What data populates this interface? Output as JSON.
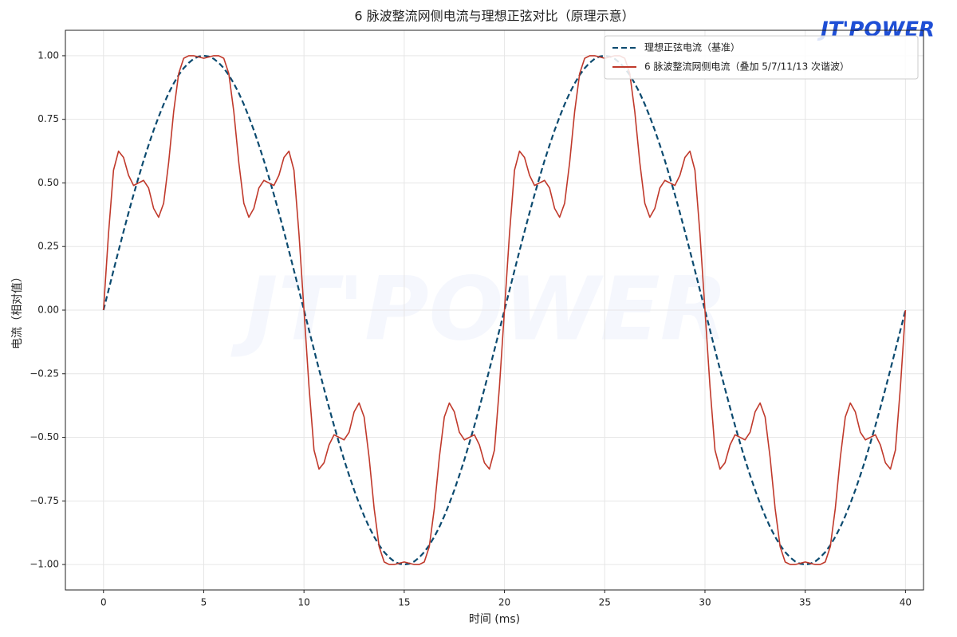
{
  "chart_data": {
    "type": "line",
    "title": "6 脉波整流网侧电流与理想正弦对比（原理示意）",
    "xlabel": "时间 (ms)",
    "ylabel": "电流（相对值）",
    "logo": "JT'POWER",
    "xlim": [
      -1.9,
      40.9
    ],
    "ylim": [
      -1.1,
      1.1
    ],
    "xticks": [
      0,
      5,
      10,
      15,
      20,
      25,
      30,
      35,
      40
    ],
    "yticks": [
      {
        "value": -1,
        "label": "−1.00"
      },
      {
        "value": -0.75,
        "label": "−0.75"
      },
      {
        "value": -0.5,
        "label": "−0.50"
      },
      {
        "value": -0.25,
        "label": "−0.25"
      },
      {
        "value": 0,
        "label": "0.00"
      },
      {
        "value": 0.25,
        "label": "0.25"
      },
      {
        "value": 0.5,
        "label": "0.50"
      },
      {
        "value": 0.75,
        "label": "0.75"
      },
      {
        "value": 1,
        "label": "1.00"
      }
    ],
    "grid": true,
    "legend": "upper right",
    "x": [
      0,
      0.25,
      0.5,
      0.75,
      1,
      1.25,
      1.5,
      1.75,
      2,
      2.25,
      2.5,
      2.75,
      3,
      3.25,
      3.5,
      3.75,
      4,
      4.25,
      4.5,
      4.75,
      5,
      5.25,
      5.5,
      5.75,
      6,
      6.25,
      6.5,
      6.75,
      7,
      7.25,
      7.5,
      7.75,
      8,
      8.25,
      8.5,
      8.75,
      9,
      9.25,
      9.5,
      9.75,
      10,
      10.25,
      10.5,
      10.75,
      11,
      11.25,
      11.5,
      11.75,
      12,
      12.25,
      12.5,
      12.75,
      13,
      13.25,
      13.5,
      13.75,
      14,
      14.25,
      14.5,
      14.75,
      15,
      15.25,
      15.5,
      15.75,
      16,
      16.25,
      16.5,
      16.75,
      17,
      17.25,
      17.5,
      17.75,
      18,
      18.25,
      18.5,
      18.75,
      19,
      19.25,
      19.5,
      19.75,
      20,
      20.25,
      20.5,
      20.75,
      21,
      21.25,
      21.5,
      21.75,
      22,
      22.25,
      22.5,
      22.75,
      23,
      23.25,
      23.5,
      23.75,
      24,
      24.25,
      24.5,
      24.75,
      25,
      25.25,
      25.5,
      25.75,
      26,
      26.25,
      26.5,
      26.75,
      27,
      27.25,
      27.5,
      27.75,
      28,
      28.25,
      28.5,
      28.75,
      29,
      29.25,
      29.5,
      29.75,
      30,
      30.25,
      30.5,
      30.75,
      31,
      31.25,
      31.5,
      31.75,
      32,
      32.25,
      32.5,
      32.75,
      33,
      33.25,
      33.5,
      33.75,
      34,
      34.25,
      34.5,
      34.75,
      35,
      35.25,
      35.5,
      35.75,
      36,
      36.25,
      36.5,
      36.75,
      37,
      37.25,
      37.5,
      37.75,
      38,
      38.25,
      38.5,
      38.75,
      39,
      39.25,
      39.5,
      39.75,
      40
    ],
    "series": [
      {
        "name": "理想正弦电流（基准）",
        "color": "#0b4a6f",
        "style": "dashed",
        "values": [
          0,
          0.078,
          0.156,
          0.233,
          0.309,
          0.383,
          0.454,
          0.522,
          0.588,
          0.649,
          0.707,
          0.76,
          0.809,
          0.853,
          0.891,
          0.924,
          0.951,
          0.972,
          0.988,
          0.997,
          1,
          0.997,
          0.988,
          0.972,
          0.951,
          0.924,
          0.891,
          0.853,
          0.809,
          0.76,
          0.707,
          0.649,
          0.588,
          0.522,
          0.454,
          0.383,
          0.309,
          0.233,
          0.156,
          0.078,
          0,
          -0.078,
          -0.156,
          -0.233,
          -0.309,
          -0.383,
          -0.454,
          -0.522,
          -0.588,
          -0.649,
          -0.707,
          -0.76,
          -0.809,
          -0.853,
          -0.891,
          -0.924,
          -0.951,
          -0.972,
          -0.988,
          -0.997,
          -1,
          -0.997,
          -0.988,
          -0.972,
          -0.951,
          -0.924,
          -0.891,
          -0.853,
          -0.809,
          -0.76,
          -0.707,
          -0.649,
          -0.588,
          -0.522,
          -0.454,
          -0.383,
          -0.309,
          -0.233,
          -0.156,
          -0.078,
          0,
          0.078,
          0.156,
          0.233,
          0.309,
          0.383,
          0.454,
          0.522,
          0.588,
          0.649,
          0.707,
          0.76,
          0.809,
          0.853,
          0.891,
          0.924,
          0.951,
          0.972,
          0.988,
          0.997,
          1,
          0.997,
          0.988,
          0.972,
          0.951,
          0.924,
          0.891,
          0.853,
          0.809,
          0.76,
          0.707,
          0.649,
          0.588,
          0.522,
          0.454,
          0.383,
          0.309,
          0.233,
          0.156,
          0.078,
          0,
          -0.078,
          -0.156,
          -0.233,
          -0.309,
          -0.383,
          -0.454,
          -0.522,
          -0.588,
          -0.649,
          -0.707,
          -0.76,
          -0.809,
          -0.853,
          -0.891,
          -0.924,
          -0.951,
          -0.972,
          -0.988,
          -0.997,
          -1,
          -0.997,
          -0.988,
          -0.972,
          -0.951,
          -0.924,
          -0.891,
          -0.853,
          -0.809,
          -0.76,
          -0.707,
          -0.649,
          -0.588,
          -0.522,
          -0.454,
          -0.383,
          -0.309,
          -0.233,
          -0.156,
          -0.078,
          0
        ]
      },
      {
        "name": "6 脉波整流网侧电流（叠加 5/7/11/13 次谐波）",
        "color": "#c0392b",
        "style": "solid",
        "values": [
          0,
          0.3,
          0.55,
          0.625,
          0.6,
          0.53,
          0.49,
          0.5,
          0.51,
          0.48,
          0.4,
          0.365,
          0.42,
          0.58,
          0.78,
          0.93,
          0.99,
          1,
          1,
          0.995,
          0.99,
          0.995,
          1,
          1,
          0.99,
          0.93,
          0.78,
          0.58,
          0.42,
          0.365,
          0.4,
          0.48,
          0.51,
          0.5,
          0.49,
          0.53,
          0.6,
          0.625,
          0.55,
          0.3,
          0,
          -0.3,
          -0.55,
          -0.625,
          -0.6,
          -0.53,
          -0.49,
          -0.5,
          -0.51,
          -0.48,
          -0.4,
          -0.365,
          -0.42,
          -0.58,
          -0.78,
          -0.93,
          -0.99,
          -1,
          -1,
          -0.995,
          -0.99,
          -0.995,
          -1,
          -1,
          -0.99,
          -0.93,
          -0.78,
          -0.58,
          -0.42,
          -0.365,
          -0.4,
          -0.48,
          -0.51,
          -0.5,
          -0.49,
          -0.53,
          -0.6,
          -0.625,
          -0.55,
          -0.3,
          0,
          0.3,
          0.55,
          0.625,
          0.6,
          0.53,
          0.49,
          0.5,
          0.51,
          0.48,
          0.4,
          0.365,
          0.42,
          0.58,
          0.78,
          0.93,
          0.99,
          1,
          1,
          0.995,
          0.99,
          0.995,
          1,
          1,
          0.99,
          0.93,
          0.78,
          0.58,
          0.42,
          0.365,
          0.4,
          0.48,
          0.51,
          0.5,
          0.49,
          0.53,
          0.6,
          0.625,
          0.55,
          0.3,
          0,
          -0.3,
          -0.55,
          -0.625,
          -0.6,
          -0.53,
          -0.49,
          -0.5,
          -0.51,
          -0.48,
          -0.4,
          -0.365,
          -0.42,
          -0.58,
          -0.78,
          -0.93,
          -0.99,
          -1,
          -1,
          -0.995,
          -0.99,
          -0.995,
          -1,
          -1,
          -0.99,
          -0.93,
          -0.78,
          -0.58,
          -0.42,
          -0.365,
          -0.4,
          -0.48,
          -0.51,
          -0.5,
          -0.49,
          -0.53,
          -0.6,
          -0.625,
          -0.55,
          -0.3,
          0
        ]
      }
    ]
  }
}
